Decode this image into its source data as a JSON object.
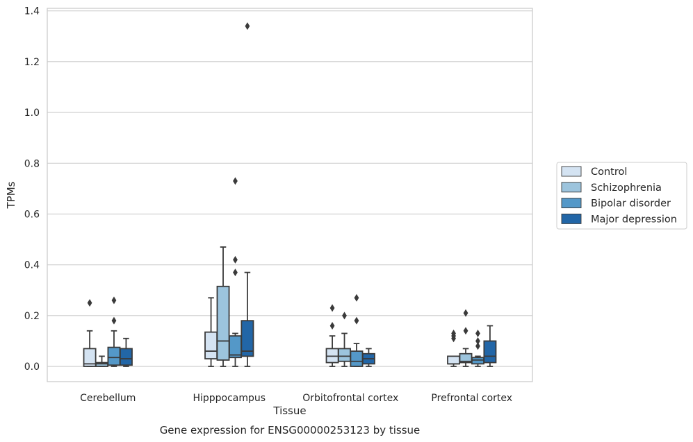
{
  "chart_data": {
    "type": "box",
    "title": "Gene expression for ENSG00000253123 by tissue",
    "xlabel": "Tissue",
    "ylabel": "TPMs",
    "ylim": [
      -0.06,
      1.41
    ],
    "yticks": [
      0.0,
      0.2,
      0.4,
      0.6,
      0.8,
      1.0,
      1.2,
      1.4
    ],
    "ytick_labels": [
      "0.0",
      "0.2",
      "0.4",
      "0.6",
      "0.8",
      "1.0",
      "1.2",
      "1.4"
    ],
    "grid": "horizontal",
    "legend_position": "right",
    "categories": [
      "Cerebellum",
      "Hipppocampus",
      "Orbitofrontal cortex",
      "Prefrontal cortex"
    ],
    "series": [
      {
        "name": "Control",
        "color": "#d4e3f2",
        "boxes": [
          {
            "whislo": 0.0,
            "q1": 0.0,
            "med": 0.01,
            "q3": 0.07,
            "whishi": 0.14,
            "fliers": [
              0.25
            ]
          },
          {
            "whislo": 0.0,
            "q1": 0.03,
            "med": 0.06,
            "q3": 0.135,
            "whishi": 0.27,
            "fliers": []
          },
          {
            "whislo": 0.0,
            "q1": 0.015,
            "med": 0.04,
            "q3": 0.07,
            "whishi": 0.12,
            "fliers": [
              0.16,
              0.23
            ]
          },
          {
            "whislo": 0.0,
            "q1": 0.01,
            "med": 0.01,
            "q3": 0.04,
            "whishi": 0.04,
            "fliers": [
              0.11,
              0.12,
              0.13
            ]
          }
        ]
      },
      {
        "name": "Schizophrenia",
        "color": "#9cc4dd",
        "boxes": [
          {
            "whislo": 0.0,
            "q1": 0.0,
            "med": 0.01,
            "q3": 0.015,
            "whishi": 0.04,
            "fliers": []
          },
          {
            "whislo": 0.0,
            "q1": 0.025,
            "med": 0.1,
            "q3": 0.315,
            "whishi": 0.47,
            "fliers": []
          },
          {
            "whislo": 0.0,
            "q1": 0.02,
            "med": 0.04,
            "q3": 0.07,
            "whishi": 0.13,
            "fliers": [
              0.2
            ]
          },
          {
            "whislo": 0.0,
            "q1": 0.015,
            "med": 0.02,
            "q3": 0.05,
            "whishi": 0.07,
            "fliers": [
              0.14,
              0.21
            ]
          }
        ]
      },
      {
        "name": "Bipolar disorder",
        "color": "#5498c8",
        "boxes": [
          {
            "whislo": 0.0,
            "q1": 0.005,
            "med": 0.035,
            "q3": 0.075,
            "whishi": 0.14,
            "fliers": [
              0.18,
              0.26
            ]
          },
          {
            "whislo": 0.0,
            "q1": 0.035,
            "med": 0.045,
            "q3": 0.12,
            "whishi": 0.13,
            "fliers": [
              0.37,
              0.42,
              0.73
            ]
          },
          {
            "whislo": 0.0,
            "q1": 0.0,
            "med": 0.02,
            "q3": 0.06,
            "whishi": 0.09,
            "fliers": [
              0.18,
              0.27
            ]
          },
          {
            "whislo": 0.0,
            "q1": 0.01,
            "med": 0.025,
            "q3": 0.035,
            "whishi": 0.04,
            "fliers": [
              0.08,
              0.1,
              0.13
            ]
          }
        ]
      },
      {
        "name": "Major depression",
        "color": "#2266a7",
        "boxes": [
          {
            "whislo": 0.0,
            "q1": 0.005,
            "med": 0.03,
            "q3": 0.07,
            "whishi": 0.11,
            "fliers": []
          },
          {
            "whislo": 0.0,
            "q1": 0.04,
            "med": 0.06,
            "q3": 0.18,
            "whishi": 0.37,
            "fliers": [
              1.34
            ]
          },
          {
            "whislo": 0.0,
            "q1": 0.01,
            "med": 0.03,
            "q3": 0.05,
            "whishi": 0.07,
            "fliers": []
          },
          {
            "whislo": 0.0,
            "q1": 0.015,
            "med": 0.04,
            "q3": 0.1,
            "whishi": 0.16,
            "fliers": []
          }
        ]
      }
    ]
  }
}
